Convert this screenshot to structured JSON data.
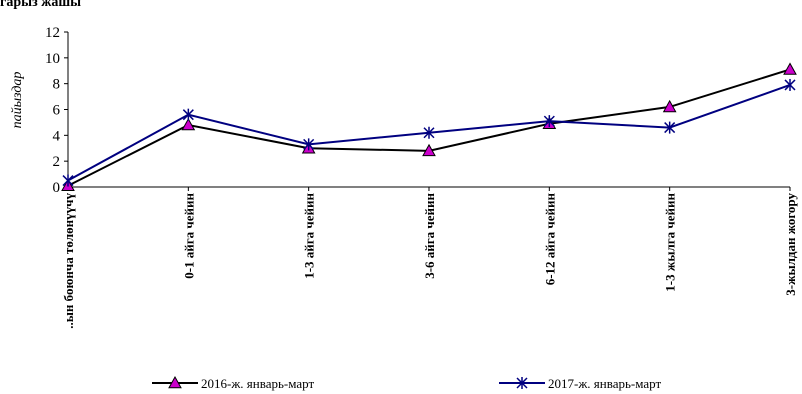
{
  "header": {
    "text": "гарыз жашы"
  },
  "chart_data": {
    "type": "line",
    "categories": [
      "..ын боюнча төлөнүүчү",
      "0-1 айга чейин",
      "1-3 айга чейин",
      "3-6 айга чейин",
      "6-12 айга чейин",
      "1-3 жылга чейин",
      "3-жылдан жогору"
    ],
    "series": [
      {
        "name": "2016-ж. январь-март",
        "values": [
          0.1,
          4.8,
          3.0,
          2.8,
          4.9,
          6.2,
          9.1
        ],
        "color": "#000000",
        "marker": "triangle",
        "marker_fill": "#cc00cc"
      },
      {
        "name": "2017-ж. январь-март",
        "values": [
          0.5,
          5.6,
          3.3,
          4.2,
          5.1,
          4.6,
          7.9
        ],
        "color": "#000080",
        "marker": "asterisk"
      }
    ],
    "ylabel": "пайыздар",
    "ylim": [
      0,
      12
    ],
    "yticks": [
      0,
      2,
      4,
      6,
      8,
      10,
      12
    ],
    "grid": false,
    "legend": "bottom"
  }
}
